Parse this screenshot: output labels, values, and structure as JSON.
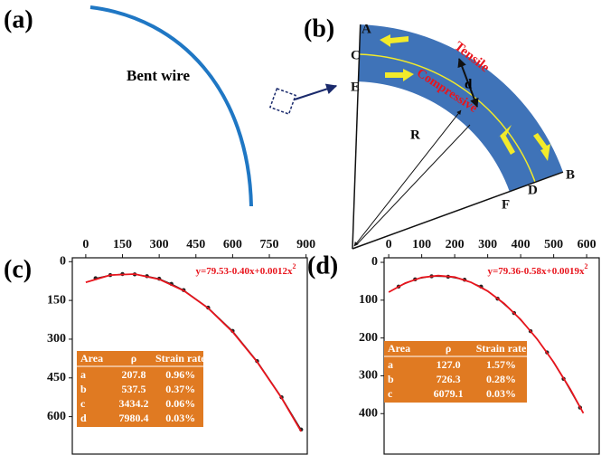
{
  "panels": {
    "a": {
      "label": "(a)",
      "text": "Bent wire"
    },
    "b": {
      "label": "(b)",
      "letters": [
        "A",
        "B",
        "C",
        "D",
        "E",
        "F"
      ],
      "tensile": "Tensile",
      "compressive": "Compressive",
      "d": "d",
      "R": "R"
    }
  },
  "chart_data": [
    {
      "type": "scatter",
      "panel_label": "(c)",
      "annotation": [
        "y=79.53-0.40x+0.0012x",
        "2"
      ],
      "xlim": [
        -55,
        905
      ],
      "ylim": [
        -15,
        745
      ],
      "y_inverted": true,
      "x_axis_top": true,
      "xticks": [
        0,
        150,
        300,
        450,
        600,
        750,
        900
      ],
      "yticks": [
        0,
        150,
        300,
        450,
        600
      ],
      "series": [
        {
          "color": "#222222",
          "markers": true,
          "x": [
            40,
            100,
            150,
            200,
            250,
            300,
            350,
            400,
            500,
            600,
            700,
            800,
            880
          ],
          "values": [
            64,
            52,
            48,
            49,
            56,
            66,
            86,
            110,
            178,
            268,
            385,
            525,
            650
          ]
        },
        {
          "color": "#e8141c",
          "markers": false,
          "x": [
            0,
            100,
            200,
            300,
            400,
            500,
            600,
            700,
            800,
            880
          ],
          "values": [
            80,
            52,
            48,
            68,
            112,
            180,
            272,
            388,
            528,
            657
          ]
        }
      ],
      "table": {
        "header": [
          "Area",
          "ρ",
          "Strain rate"
        ],
        "rows": [
          [
            "a",
            "207.8",
            "0.96%"
          ],
          [
            "b",
            "537.5",
            "0.37%"
          ],
          [
            "c",
            "3434.2",
            "0.06%"
          ],
          [
            "d",
            "7980.4",
            "0.03%"
          ]
        ]
      }
    },
    {
      "type": "scatter",
      "panel_label": "(d)",
      "annotation": [
        "y=79.36-0.58x+0.0019x",
        "2"
      ],
      "xlim": [
        -14,
        638
      ],
      "ylim": [
        -12,
        507
      ],
      "y_inverted": true,
      "x_axis_top": true,
      "xticks": [
        0,
        100,
        200,
        300,
        400,
        500,
        600
      ],
      "yticks": [
        0,
        100,
        200,
        300,
        400
      ],
      "series": [
        {
          "color": "#222222",
          "markers": true,
          "x": [
            30,
            80,
            130,
            180,
            230,
            280,
            330,
            380,
            430,
            480,
            530,
            580
          ],
          "values": [
            64,
            45,
            37,
            38,
            46,
            64,
            96,
            134,
            182,
            238,
            308,
            384
          ]
        },
        {
          "color": "#e8141c",
          "markers": false,
          "x": [
            0,
            50,
            100,
            150,
            200,
            250,
            300,
            350,
            400,
            450,
            500,
            550,
            590
          ],
          "values": [
            79,
            55,
            40,
            35,
            39,
            53,
            76,
            109,
            151,
            203,
            264,
            335,
            399
          ]
        }
      ],
      "table": {
        "header": [
          "Area",
          "ρ",
          "Strain rate"
        ],
        "rows": [
          [
            "a",
            "127.0",
            "1.57%"
          ],
          [
            "b",
            "726.3",
            "0.28%"
          ],
          [
            "c",
            "6079.1",
            "0.03%"
          ]
        ]
      }
    }
  ]
}
